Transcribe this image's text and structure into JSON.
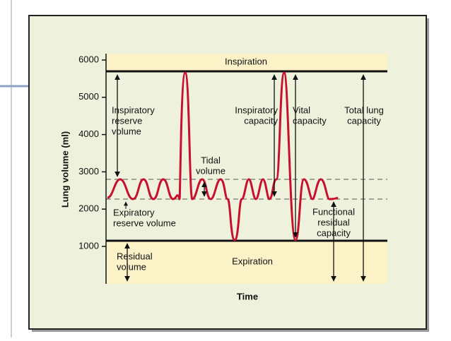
{
  "axis": {
    "label": "Lung volume (ml)",
    "ticks": [
      1000,
      2000,
      3000,
      4000,
      5000,
      6000
    ],
    "x_label": "Time"
  },
  "regions": {
    "top": "Inspiration",
    "bottom": "Expiration"
  },
  "labels": [
    {
      "lines": [
        "Inspiratory",
        "reserve",
        "volume"
      ]
    },
    {
      "lines": [
        "Tidal",
        "volume"
      ]
    },
    {
      "lines": [
        "Expiratory",
        "reserve volume"
      ]
    },
    {
      "lines": [
        "Residual",
        "volume"
      ]
    },
    {
      "lines": [
        "Inspiratory",
        "capacity"
      ]
    },
    {
      "lines": [
        "Vital",
        "capacity"
      ]
    },
    {
      "lines": [
        "Total lung",
        "capacity"
      ]
    },
    {
      "lines": [
        "Functional",
        "residual",
        "capacity"
      ]
    }
  ]
}
